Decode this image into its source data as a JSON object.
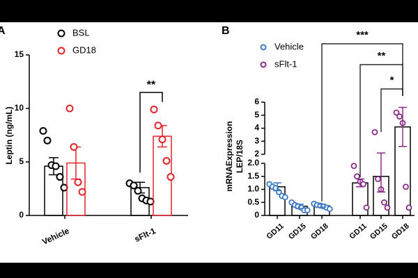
{
  "chart_data": [
    {
      "type": "bar",
      "panel_label": "A",
      "ylabel": "Leptin (ng/mL)",
      "categories": [
        "Vehicle",
        "sFlt-1"
      ],
      "ylim": [
        0,
        15
      ],
      "yticks": [
        0,
        5,
        10,
        15
      ],
      "series": [
        {
          "name": "BSL",
          "color": "#000000",
          "values": [
            4.6,
            2.6
          ],
          "errors": [
            0.8,
            0.5
          ],
          "points": [
            [
              7.9,
              7.0,
              4.7,
              4.6,
              3.6,
              2.6
            ],
            [
              3.0,
              2.8,
              2.3,
              1.6,
              1.4,
              1.3
            ]
          ]
        },
        {
          "name": "GD18",
          "color": "#e3242b",
          "values": [
            4.9,
            7.4
          ],
          "errors": [
            1.5,
            1.0
          ],
          "points": [
            [
              10.0,
              6.4,
              3.1,
              2.2
            ],
            [
              9.9,
              8.4,
              7.1,
              5.1,
              3.6
            ]
          ]
        }
      ],
      "annotations": [
        "**"
      ]
    },
    {
      "type": "bar",
      "panel_label": "B",
      "ylabel": [
        "mRNAExpression",
        "LEP/18S"
      ],
      "ylim_lower": [
        0,
        2
      ],
      "ylim_upper": [
        2,
        6
      ],
      "yticks_lower": [
        0,
        0.5,
        {
          "value": 1,
          "label": "1.0"
        },
        {
          "value": 1.5,
          "label": "1.5"
        },
        {
          "value": 2,
          "label": "2.0"
        }
      ],
      "yticks_upper": [
        2,
        3,
        4,
        5,
        6
      ],
      "series": [
        {
          "name": "Vehicle",
          "color": "#3b78c4",
          "categories": [
            "GD11",
            "GD15",
            "GD18"
          ],
          "values": [
            1.1,
            0.35,
            0.37
          ],
          "errors": [
            0.15,
            0.08,
            0.06
          ],
          "points": [
            [
              1.2,
              1.1,
              1.05,
              0.9,
              0.75,
              0.7
            ],
            [
              0.5,
              0.4,
              0.35,
              0.3,
              0.2,
              0.2
            ],
            [
              0.45,
              0.4,
              0.38,
              0.35,
              0.3,
              0.25
            ]
          ]
        },
        {
          "name": "sFlt-1",
          "color": "#8a2a8a",
          "categories": [
            "GD11",
            "GD15",
            "GD18"
          ],
          "values": [
            1.25,
            1.5,
            4.1
          ],
          "errors": [
            0.15,
            0.6,
            1.5
          ],
          "points": [
            [
              1.9,
              1.5,
              1.3,
              1.2,
              0.3
            ],
            [
              3.7,
              1.4,
              1.0,
              0.5,
              0.3
            ],
            [
              5.2,
              4.9,
              4.4,
              1.1,
              0.3
            ]
          ]
        }
      ],
      "annotations": [
        "***",
        "**",
        "*"
      ]
    }
  ]
}
